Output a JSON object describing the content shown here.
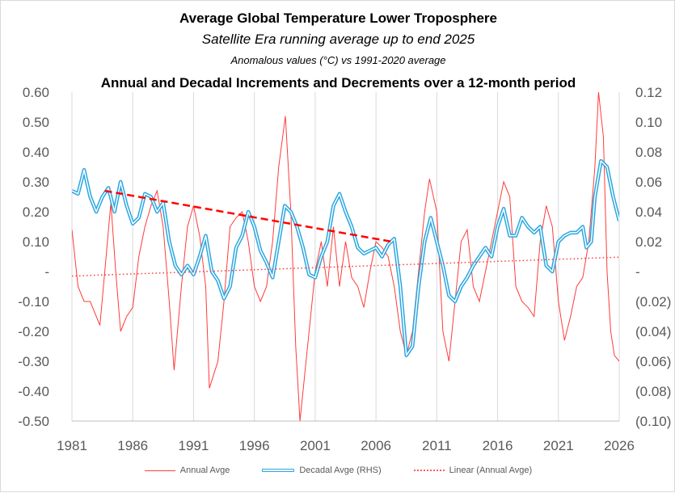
{
  "chart_data": {
    "type": "line",
    "title": "Average Global Temperature Lower Troposphere",
    "subtitle": "Satellite Era running average up to end 2025",
    "subtitle2": "Anomalous values (°C) vs 1991-2020 average",
    "chart_subtitle": "Annual and Decadal Increments and Decrements over a 12-month period",
    "xlim": [
      1981,
      2026
    ],
    "ylim_left": [
      -0.5,
      0.6
    ],
    "ylim_right": [
      -0.1,
      0.12
    ],
    "x_ticks": [
      "1981",
      "1986",
      "1991",
      "1996",
      "2001",
      "2006",
      "2011",
      "2016",
      "2021",
      "2026"
    ],
    "y_left_ticks": [
      "0.60",
      "0.50",
      "0.40",
      "0.30",
      "0.20",
      "0.10",
      "-",
      "-0.10",
      "-0.20",
      "-0.30",
      "-0.40",
      "-0.50"
    ],
    "y_right_ticks": [
      "0.12",
      "0.10",
      "0.08",
      "0.06",
      "0.04",
      "0.02",
      "-",
      "(0.02)",
      "(0.04)",
      "(0.06)",
      "(0.08)",
      "(0.10)"
    ],
    "grid": "vertical",
    "legend_position": "bottom",
    "series": [
      {
        "name": "Annual Avge",
        "axis": "left",
        "color": "#ff3b3b",
        "points": [
          [
            1981,
            0.14
          ],
          [
            1981.5,
            -0.05
          ],
          [
            1982,
            -0.1
          ],
          [
            1982.5,
            -0.1
          ],
          [
            1983,
            -0.15
          ],
          [
            1983.3,
            -0.18
          ],
          [
            1983.7,
            0
          ],
          [
            1984.2,
            0.23
          ],
          [
            1984.6,
            0
          ],
          [
            1985,
            -0.2
          ],
          [
            1985.5,
            -0.15
          ],
          [
            1986,
            -0.12
          ],
          [
            1986.5,
            0.05
          ],
          [
            1987,
            0.15
          ],
          [
            1987.5,
            0.22
          ],
          [
            1988,
            0.27
          ],
          [
            1988.5,
            0.15
          ],
          [
            1989,
            -0.1
          ],
          [
            1989.4,
            -0.33
          ],
          [
            1990,
            -0.05
          ],
          [
            1990.5,
            0.15
          ],
          [
            1991,
            0.22
          ],
          [
            1991.5,
            0.12
          ],
          [
            1992,
            -0.05
          ],
          [
            1992.3,
            -0.39
          ],
          [
            1993,
            -0.3
          ],
          [
            1993.5,
            -0.1
          ],
          [
            1994,
            0.15
          ],
          [
            1994.5,
            0.18
          ],
          [
            1995,
            0.2
          ],
          [
            1995.5,
            0.1
          ],
          [
            1996,
            -0.05
          ],
          [
            1996.5,
            -0.1
          ],
          [
            1997,
            -0.05
          ],
          [
            1997.5,
            0.1
          ],
          [
            1998,
            0.35
          ],
          [
            1998.55,
            0.52
          ],
          [
            1999,
            0.2
          ],
          [
            1999.4,
            -0.25
          ],
          [
            1999.75,
            -0.5
          ],
          [
            2000.5,
            -0.2
          ],
          [
            2001,
            0
          ],
          [
            2001.5,
            0.1
          ],
          [
            2002,
            -0.05
          ],
          [
            2002.5,
            0.15
          ],
          [
            2003,
            -0.05
          ],
          [
            2003.5,
            0.1
          ],
          [
            2004,
            -0.02
          ],
          [
            2004.5,
            -0.05
          ],
          [
            2005,
            -0.12
          ],
          [
            2005.5,
            0
          ],
          [
            2006,
            0.1
          ],
          [
            2006.5,
            0.08
          ],
          [
            2007,
            0.05
          ],
          [
            2007.5,
            -0.05
          ],
          [
            2008,
            -0.2
          ],
          [
            2008.5,
            -0.28
          ],
          [
            2009,
            -0.2
          ],
          [
            2009.5,
            0
          ],
          [
            2010,
            0.2
          ],
          [
            2010.4,
            0.31
          ],
          [
            2011,
            0.2
          ],
          [
            2011.5,
            -0.2
          ],
          [
            2012,
            -0.3
          ],
          [
            2012.5,
            -0.1
          ],
          [
            2013,
            0.1
          ],
          [
            2013.5,
            0.14
          ],
          [
            2014,
            -0.05
          ],
          [
            2014.5,
            -0.1
          ],
          [
            2015,
            0
          ],
          [
            2015.5,
            0.1
          ],
          [
            2016,
            0.2
          ],
          [
            2016.5,
            0.3
          ],
          [
            2017,
            0.25
          ],
          [
            2017.5,
            -0.05
          ],
          [
            2018,
            -0.1
          ],
          [
            2018.5,
            -0.12
          ],
          [
            2019,
            -0.15
          ],
          [
            2019.5,
            0.1
          ],
          [
            2020,
            0.22
          ],
          [
            2020.5,
            0.15
          ],
          [
            2021,
            -0.1
          ],
          [
            2021.5,
            -0.23
          ],
          [
            2022,
            -0.15
          ],
          [
            2022.5,
            -0.05
          ],
          [
            2023,
            -0.02
          ],
          [
            2023.5,
            0.1
          ],
          [
            2024,
            0.35
          ],
          [
            2024.3,
            0.6
          ],
          [
            2024.7,
            0.45
          ],
          [
            2025,
            0
          ],
          [
            2025.3,
            -0.2
          ],
          [
            2025.6,
            -0.28
          ],
          [
            2026,
            -0.3
          ]
        ]
      },
      {
        "name": "Decadal Avge (RHS)",
        "axis": "right",
        "color": "#2aa7e0",
        "points": [
          [
            1981,
            0.054
          ],
          [
            1981.5,
            0.052
          ],
          [
            1982,
            0.068
          ],
          [
            1982.5,
            0.05
          ],
          [
            1983,
            0.04
          ],
          [
            1983.5,
            0.05
          ],
          [
            1984,
            0.056
          ],
          [
            1984.5,
            0.04
          ],
          [
            1985,
            0.06
          ],
          [
            1985.5,
            0.044
          ],
          [
            1986,
            0.032
          ],
          [
            1986.5,
            0.036
          ],
          [
            1987,
            0.052
          ],
          [
            1987.5,
            0.05
          ],
          [
            1988,
            0.04
          ],
          [
            1988.5,
            0.046
          ],
          [
            1989,
            0.02
          ],
          [
            1989.5,
            0.004
          ],
          [
            1990,
            -0.002
          ],
          [
            1990.5,
            0.004
          ],
          [
            1991,
            -0.002
          ],
          [
            1991.5,
            0.01
          ],
          [
            1992,
            0.024
          ],
          [
            1992.5,
            0
          ],
          [
            1993,
            -0.006
          ],
          [
            1993.5,
            -0.018
          ],
          [
            1994,
            -0.01
          ],
          [
            1994.5,
            0.016
          ],
          [
            1995,
            0.024
          ],
          [
            1995.5,
            0.04
          ],
          [
            1996,
            0.03
          ],
          [
            1996.5,
            0.014
          ],
          [
            1997,
            0.006
          ],
          [
            1997.5,
            -0.004
          ],
          [
            1998,
            0.02
          ],
          [
            1998.5,
            0.044
          ],
          [
            1999,
            0.04
          ],
          [
            1999.5,
            0.03
          ],
          [
            2000,
            0.016
          ],
          [
            2000.5,
            -0.002
          ],
          [
            2001,
            -0.004
          ],
          [
            2001.5,
            0.01
          ],
          [
            2002,
            0.02
          ],
          [
            2002.5,
            0.044
          ],
          [
            2003,
            0.052
          ],
          [
            2003.5,
            0.04
          ],
          [
            2004,
            0.03
          ],
          [
            2004.5,
            0.016
          ],
          [
            2005,
            0.012
          ],
          [
            2005.5,
            0.014
          ],
          [
            2006,
            0.016
          ],
          [
            2006.5,
            0.01
          ],
          [
            2007,
            0.018
          ],
          [
            2007.5,
            0.022
          ],
          [
            2008,
            -0.01
          ],
          [
            2008.5,
            -0.056
          ],
          [
            2009,
            -0.05
          ],
          [
            2009.5,
            -0.01
          ],
          [
            2010,
            0.02
          ],
          [
            2010.5,
            0.036
          ],
          [
            2011,
            0.02
          ],
          [
            2011.5,
            0.004
          ],
          [
            2012,
            -0.016
          ],
          [
            2012.5,
            -0.02
          ],
          [
            2013,
            -0.01
          ],
          [
            2013.5,
            -0.004
          ],
          [
            2014,
            0.004
          ],
          [
            2014.5,
            0.01
          ],
          [
            2015,
            0.016
          ],
          [
            2015.5,
            0.01
          ],
          [
            2016,
            0.03
          ],
          [
            2016.5,
            0.042
          ],
          [
            2017,
            0.024
          ],
          [
            2017.5,
            0.024
          ],
          [
            2018,
            0.036
          ],
          [
            2018.5,
            0.03
          ],
          [
            2019,
            0.026
          ],
          [
            2019.5,
            0.03
          ],
          [
            2020,
            0.004
          ],
          [
            2020.5,
            0
          ],
          [
            2021,
            0.02
          ],
          [
            2021.5,
            0.024
          ],
          [
            2022,
            0.026
          ],
          [
            2022.5,
            0.026
          ],
          [
            2023,
            0.03
          ],
          [
            2023.3,
            0.016
          ],
          [
            2023.7,
            0.02
          ],
          [
            2024,
            0.05
          ],
          [
            2024.5,
            0.074
          ],
          [
            2025,
            0.07
          ],
          [
            2025.5,
            0.05
          ],
          [
            2026,
            0.034
          ]
        ]
      },
      {
        "name": "Linear (Annual Avge)",
        "axis": "left",
        "color": "#ff3b3b",
        "style": "dotted",
        "points": [
          [
            1981,
            -0.015
          ],
          [
            2026,
            0.048
          ]
        ]
      },
      {
        "axis": "left",
        "color": "#ff0000",
        "style": "dashed",
        "points": [
          [
            1983.7,
            0.27
          ],
          [
            2007.3,
            0.1
          ]
        ]
      }
    ]
  }
}
